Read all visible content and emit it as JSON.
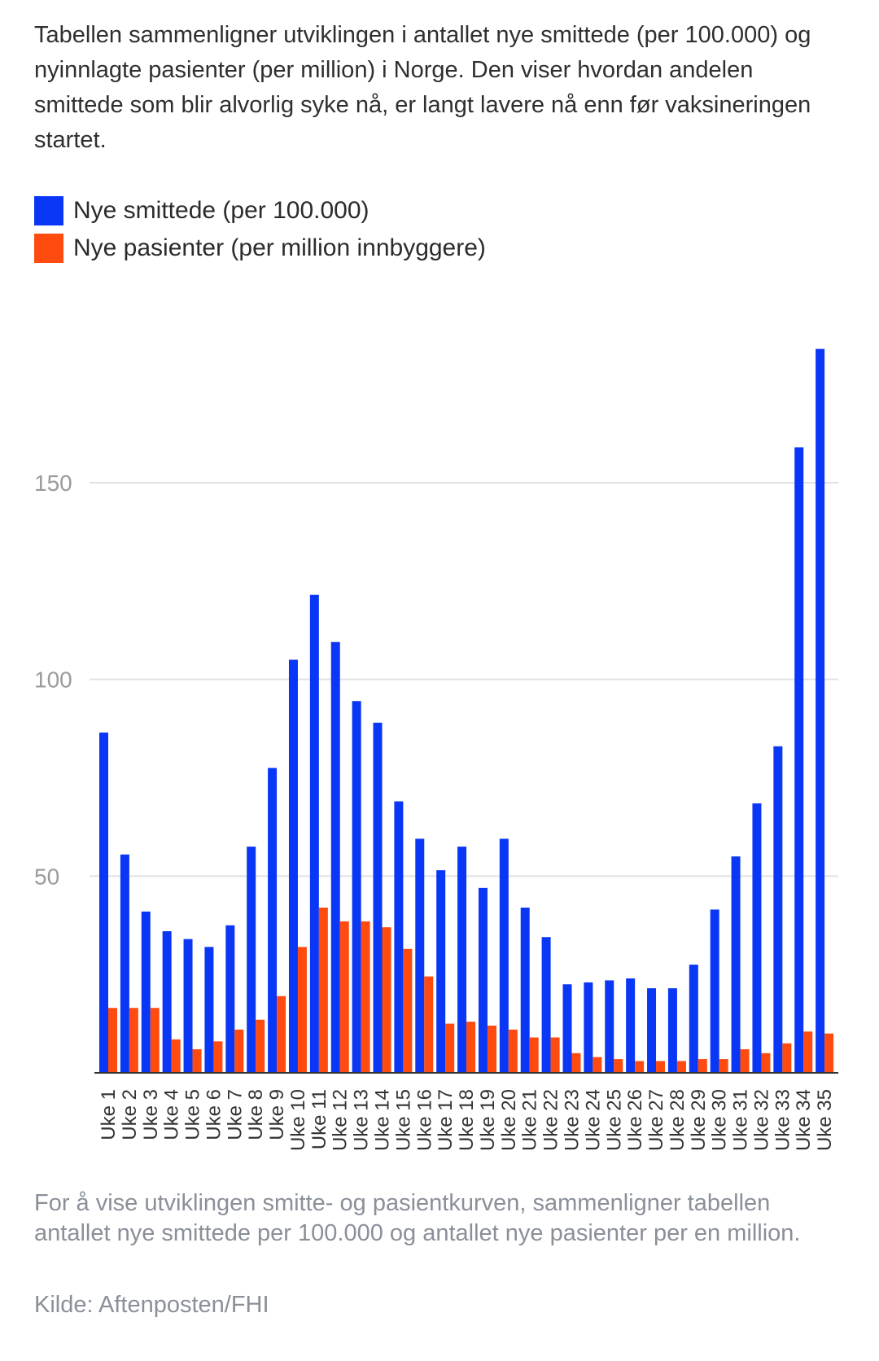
{
  "intro": "Tabellen sammenligner utviklingen i antallet nye smittede (per 100.000) og nyinnlagte pasienter (per million) i Norge. Den viser hvordan andelen smittede som blir alvorlig syke nå, er langt lavere nå enn før vaksineringen startet.",
  "footnote": "For å vise utviklingen smitte- og pasientkurven, sammenligner tabellen antallet nye smittede per 100.000 og antallet nye pasienter per en million.",
  "source": "Kilde: Aftenposten/FHI",
  "colors": {
    "infected": "#0a36f5",
    "patients": "#ff4b10",
    "grid": "#e2e2e2",
    "axis": "#333333"
  },
  "chart_data": {
    "type": "bar",
    "categories": [
      "Uke 1",
      "Uke 2",
      "Uke 3",
      "Uke 4",
      "Uke 5",
      "Uke 6",
      "Uke 7",
      "Uke 8",
      "Uke 9",
      "Uke 10",
      "Uke 11",
      "Uke 12",
      "Uke 13",
      "Uke 14",
      "Uke 15",
      "Uke 16",
      "Uke 17",
      "Uke 18",
      "Uke 19",
      "Uke 20",
      "Uke 21",
      "Uke 22",
      "Uke 23",
      "Uke 24",
      "Uke 25",
      "Uke 26",
      "Uke 27",
      "Uke 28",
      "Uke 29",
      "Uke 30",
      "Uke 31",
      "Uke 32",
      "Uke 33",
      "Uke 34",
      "Uke 35"
    ],
    "series": [
      {
        "name": "Nye smittede (per 100.000)",
        "color": "#0a36f5",
        "values": [
          86.5,
          55.5,
          41,
          36,
          34,
          32,
          37.5,
          57.5,
          77.5,
          105,
          121.5,
          109.5,
          94.5,
          89,
          69,
          59.5,
          51.5,
          57.5,
          47,
          59.5,
          42,
          34.5,
          22.5,
          23,
          23.5,
          24,
          21.5,
          21.5,
          27.5,
          41.5,
          55,
          68.5,
          83,
          159,
          184
        ]
      },
      {
        "name": "Nye pasienter (per million innbyggere)",
        "color": "#ff4b10",
        "values": [
          16.5,
          16.5,
          16.5,
          8.5,
          6,
          8,
          11,
          13.5,
          19.5,
          32,
          42,
          38.5,
          38.5,
          37,
          31.5,
          24.5,
          12.5,
          13,
          12,
          11,
          9,
          9,
          5,
          4,
          3.5,
          3,
          3,
          3,
          3.5,
          3.5,
          6,
          5,
          7.5,
          10.5,
          10
        ]
      }
    ],
    "yticks": [
      "50",
      "100",
      "150"
    ],
    "ylim": [
      0,
      195
    ],
    "grid": true,
    "legend": "top-left"
  }
}
